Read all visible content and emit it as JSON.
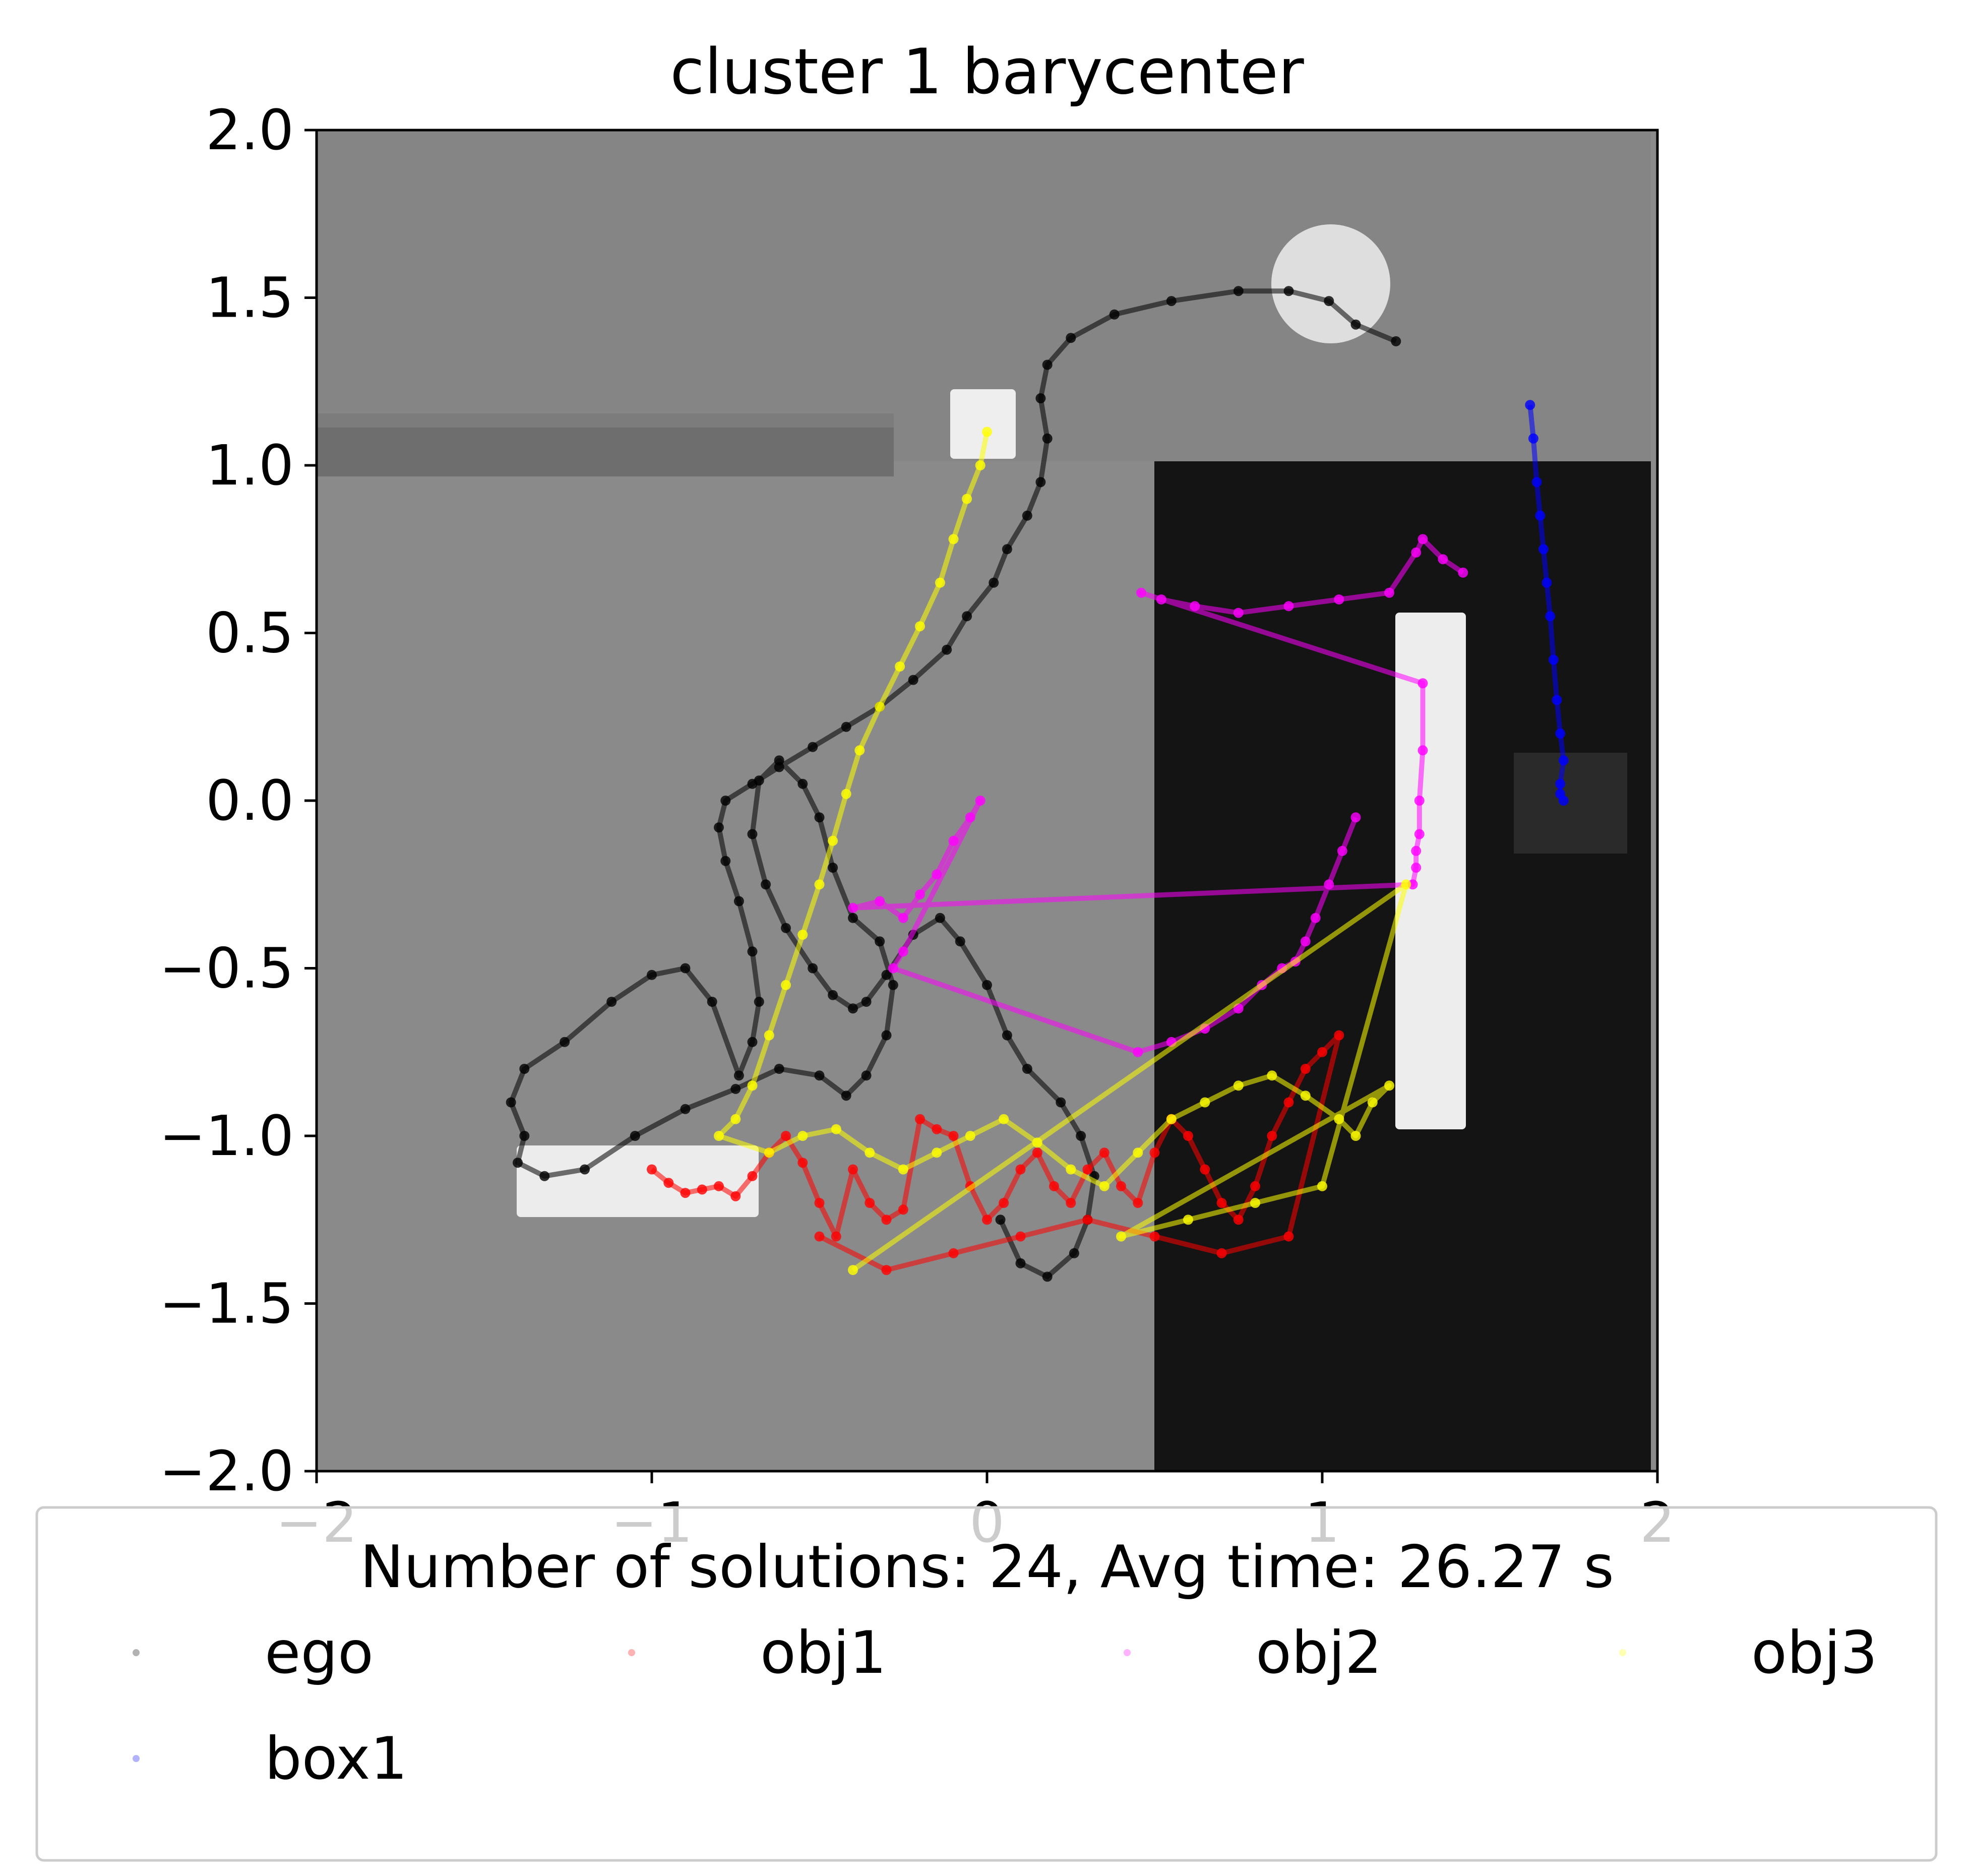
{
  "chart_data": {
    "type": "scatter",
    "title": "cluster 1 barycenter",
    "xlabel": "",
    "ylabel": "",
    "xlim": [
      -2,
      2
    ],
    "ylim": [
      -2,
      2
    ],
    "x_ticks": [
      "−2",
      "−1",
      "0",
      "1",
      "2"
    ],
    "y_ticks": [
      "−2.0",
      "−1.5",
      "−1.0",
      "−0.5",
      "0.0",
      "0.5",
      "1.0",
      "1.5",
      "2.0"
    ],
    "grid": false,
    "legend": {
      "title": "Number of solutions: 24, Avg time: 26.27 s",
      "placement": "below plot",
      "entries": [
        "ego",
        "obj1",
        "obj2",
        "obj3",
        "box1"
      ]
    },
    "series": [
      {
        "name": "ego",
        "color": "#000000",
        "x": [
          1.22,
          1.1,
          1.02,
          0.9,
          0.75,
          0.55,
          0.38,
          0.25,
          0.18,
          0.16,
          0.18,
          0.16,
          0.12,
          0.06,
          0.02,
          -0.06,
          -0.12,
          -0.22,
          -0.32,
          -0.42,
          -0.52,
          -0.62,
          -0.7,
          -0.78,
          -0.8,
          -0.78,
          -0.74,
          -0.7,
          -0.68,
          -0.7,
          -0.74,
          -0.82,
          -0.9,
          -1.0,
          -1.12,
          -1.26,
          -1.38,
          -1.42,
          -1.38,
          -1.4,
          -1.32,
          -1.2,
          -1.05,
          -0.9,
          -0.75,
          -0.62,
          -0.5,
          -0.42,
          -0.36,
          -0.3,
          -0.28,
          -0.32,
          -0.4,
          -0.46,
          -0.5,
          -0.55,
          -0.62,
          -0.68,
          -0.7,
          -0.66,
          -0.6,
          -0.52,
          -0.46,
          -0.4,
          -0.36,
          -0.3,
          -0.22,
          -0.14,
          -0.08,
          0.0,
          0.06,
          0.12,
          0.22,
          0.28,
          0.32,
          0.3,
          0.26,
          0.18,
          0.1,
          0.04
        ],
        "y": [
          1.37,
          1.42,
          1.49,
          1.52,
          1.52,
          1.49,
          1.45,
          1.38,
          1.3,
          1.2,
          1.08,
          0.95,
          0.85,
          0.75,
          0.65,
          0.55,
          0.45,
          0.36,
          0.28,
          0.22,
          0.16,
          0.1,
          0.05,
          0.0,
          -0.08,
          -0.18,
          -0.3,
          -0.45,
          -0.6,
          -0.72,
          -0.82,
          -0.6,
          -0.5,
          -0.52,
          -0.6,
          -0.72,
          -0.8,
          -0.9,
          -1.0,
          -1.08,
          -1.12,
          -1.1,
          -1.0,
          -0.92,
          -0.86,
          -0.8,
          -0.82,
          -0.88,
          -0.82,
          -0.7,
          -0.55,
          -0.42,
          -0.35,
          -0.2,
          -0.05,
          0.05,
          0.12,
          0.06,
          -0.1,
          -0.25,
          -0.38,
          -0.5,
          -0.58,
          -0.62,
          -0.6,
          -0.52,
          -0.4,
          -0.35,
          -0.42,
          -0.55,
          -0.7,
          -0.8,
          -0.9,
          -1.0,
          -1.12,
          -1.25,
          -1.35,
          -1.42,
          -1.38,
          -1.25
        ]
      },
      {
        "name": "obj1",
        "color": "#ff0000",
        "x": [
          -1.0,
          -0.95,
          -0.9,
          -0.85,
          -0.8,
          -0.75,
          -0.7,
          -0.65,
          -0.6,
          -0.55,
          -0.5,
          -0.45,
          -0.4,
          -0.35,
          -0.3,
          -0.25,
          -0.2,
          -0.15,
          -0.1,
          -0.05,
          0.0,
          0.05,
          0.1,
          0.15,
          0.2,
          0.25,
          0.3,
          0.35,
          0.4,
          0.45,
          0.5,
          0.55,
          0.6,
          0.65,
          0.7,
          0.75,
          0.8,
          0.85,
          0.9,
          0.95,
          1.0,
          1.05,
          0.9,
          0.7,
          0.5,
          0.3,
          0.1,
          -0.1,
          -0.3,
          -0.5
        ],
        "y": [
          -1.1,
          -1.14,
          -1.17,
          -1.16,
          -1.15,
          -1.18,
          -1.12,
          -1.05,
          -1.0,
          -1.08,
          -1.2,
          -1.3,
          -1.1,
          -1.2,
          -1.25,
          -1.22,
          -0.95,
          -0.98,
          -1.0,
          -1.15,
          -1.25,
          -1.2,
          -1.1,
          -1.05,
          -1.15,
          -1.2,
          -1.1,
          -1.05,
          -1.15,
          -1.2,
          -1.05,
          -0.95,
          -1.0,
          -1.1,
          -1.2,
          -1.25,
          -1.15,
          -1.0,
          -0.9,
          -0.8,
          -0.75,
          -0.7,
          -1.3,
          -1.35,
          -1.3,
          -1.25,
          -1.3,
          -1.35,
          -1.4,
          -1.3
        ]
      },
      {
        "name": "obj2",
        "color": "#ff00ff",
        "x": [
          1.42,
          1.36,
          1.3,
          1.28,
          1.2,
          1.05,
          0.9,
          0.75,
          0.62,
          0.52,
          0.46,
          1.3,
          1.3,
          1.29,
          1.29,
          1.28,
          1.28,
          1.27,
          -0.4,
          -0.32,
          -0.25,
          -0.2,
          -0.15,
          -0.1,
          -0.05,
          -0.02,
          -0.25,
          -0.28,
          0.45,
          0.55,
          0.65,
          0.75,
          0.82,
          0.88,
          0.92,
          0.95,
          0.98,
          1.02,
          1.06,
          1.1
        ],
        "y": [
          0.68,
          0.72,
          0.78,
          0.74,
          0.62,
          0.6,
          0.58,
          0.56,
          0.58,
          0.6,
          0.62,
          0.35,
          0.15,
          0.0,
          -0.1,
          -0.15,
          -0.2,
          -0.25,
          -0.32,
          -0.3,
          -0.35,
          -0.28,
          -0.22,
          -0.12,
          -0.05,
          0.0,
          -0.45,
          -0.5,
          -0.75,
          -0.72,
          -0.68,
          -0.62,
          -0.55,
          -0.5,
          -0.48,
          -0.42,
          -0.35,
          -0.25,
          -0.15,
          -0.05
        ]
      },
      {
        "name": "obj3",
        "color": "#ffff00",
        "x": [
          0.0,
          -0.02,
          -0.06,
          -0.1,
          -0.14,
          -0.2,
          -0.26,
          -0.32,
          -0.38,
          -0.42,
          -0.46,
          -0.5,
          -0.55,
          -0.6,
          -0.65,
          -0.7,
          -0.75,
          -0.8,
          -0.65,
          -0.55,
          -0.45,
          -0.35,
          -0.25,
          -0.15,
          -0.05,
          0.05,
          0.15,
          0.25,
          0.35,
          0.45,
          0.55,
          0.65,
          0.75,
          0.85,
          0.95,
          1.05,
          1.1,
          1.15,
          1.2,
          0.4,
          0.6,
          0.8,
          1.0,
          1.25,
          -0.4
        ],
        "y": [
          1.1,
          1.0,
          0.9,
          0.78,
          0.65,
          0.52,
          0.4,
          0.28,
          0.15,
          0.02,
          -0.12,
          -0.25,
          -0.4,
          -0.55,
          -0.7,
          -0.85,
          -0.95,
          -1.0,
          -1.05,
          -1.0,
          -0.98,
          -1.05,
          -1.1,
          -1.05,
          -1.0,
          -0.95,
          -1.02,
          -1.1,
          -1.15,
          -1.05,
          -0.95,
          -0.9,
          -0.85,
          -0.82,
          -0.88,
          -0.95,
          -1.0,
          -0.9,
          -0.85,
          -1.3,
          -1.25,
          -1.2,
          -1.15,
          -0.25,
          -1.4
        ]
      },
      {
        "name": "box1",
        "color": "#0000ff",
        "x": [
          1.62,
          1.63,
          1.64,
          1.65,
          1.66,
          1.67,
          1.68,
          1.69,
          1.7,
          1.71,
          1.72,
          1.71,
          1.71,
          1.72
        ],
        "y": [
          1.18,
          1.08,
          0.95,
          0.85,
          0.75,
          0.65,
          0.55,
          0.42,
          0.3,
          0.2,
          0.12,
          0.05,
          0.02,
          0.0
        ]
      }
    ]
  }
}
